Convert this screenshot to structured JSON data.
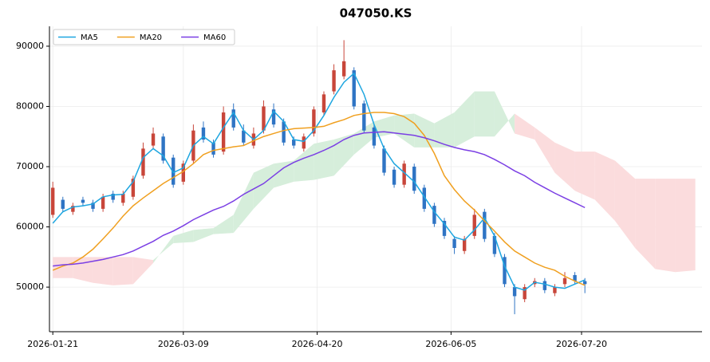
{
  "chart_data": {
    "type": "candlestick",
    "title": "047050.KS",
    "x": [
      0,
      3,
      6,
      9,
      12,
      15,
      18,
      21,
      24,
      27,
      30,
      33,
      36,
      39,
      42,
      45,
      48,
      51,
      54,
      57,
      60,
      63,
      66,
      69,
      72,
      75,
      78,
      81,
      84,
      87,
      90,
      93,
      96,
      99,
      102,
      105,
      108,
      111,
      114,
      117,
      120,
      123,
      126,
      129,
      132,
      135,
      138,
      141,
      144,
      147,
      150,
      153,
      156,
      159
    ],
    "open": [
      62000,
      64500,
      62500,
      64500,
      64000,
      63000,
      65500,
      64000,
      65000,
      68500,
      73500,
      75000,
      71500,
      67500,
      71000,
      76500,
      74000,
      72500,
      79500,
      76000,
      73500,
      76000,
      79500,
      77500,
      74500,
      73000,
      75500,
      79000,
      82500,
      85000,
      86000,
      80500,
      76500,
      73000,
      69500,
      67000,
      70000,
      66500,
      63500,
      61000,
      58000,
      56000,
      58500,
      62500,
      58500,
      55000,
      50000,
      48000,
      50500,
      51000,
      49000,
      50500,
      52000,
      51000
    ],
    "high": [
      67500,
      65000,
      64000,
      65000,
      64500,
      65500,
      66000,
      66000,
      68500,
      74000,
      76500,
      75500,
      72000,
      71000,
      77000,
      77500,
      74500,
      80000,
      80500,
      77000,
      76500,
      81000,
      80500,
      78000,
      75000,
      75500,
      80000,
      82500,
      87000,
      91000,
      86500,
      81000,
      77000,
      73500,
      70000,
      71000,
      70500,
      67000,
      64000,
      61500,
      58500,
      58500,
      63000,
      63000,
      59000,
      55500,
      50500,
      50500,
      51500,
      51500,
      50500,
      52500,
      52500,
      51500
    ],
    "low": [
      61500,
      62500,
      62000,
      63500,
      62500,
      62500,
      64000,
      63500,
      64500,
      68000,
      73000,
      70500,
      66500,
      67000,
      70500,
      74000,
      71500,
      72000,
      76000,
      73500,
      73000,
      75500,
      76500,
      73500,
      73000,
      72500,
      75000,
      78500,
      82000,
      84500,
      79500,
      75500,
      73000,
      68500,
      66500,
      66500,
      65500,
      62500,
      60000,
      58000,
      55500,
      55500,
      58000,
      57500,
      55000,
      50000,
      45500,
      47500,
      50000,
      49000,
      48500,
      50000,
      50500,
      49000
    ],
    "close": [
      66500,
      63000,
      63500,
      64000,
      63000,
      65000,
      64500,
      65500,
      68000,
      73000,
      75500,
      71000,
      67000,
      70500,
      76000,
      74500,
      72000,
      79000,
      76500,
      74000,
      75500,
      80000,
      77000,
      74000,
      73500,
      75000,
      79500,
      82000,
      86000,
      87500,
      80000,
      76000,
      73500,
      69000,
      67000,
      70500,
      66000,
      63000,
      60500,
      58500,
      56500,
      58000,
      62000,
      58000,
      55500,
      50500,
      48500,
      50000,
      51000,
      49500,
      50000,
      51500,
      51000,
      50500
    ],
    "up_color": "#c8463a",
    "down_color": "#2f74c4",
    "series": [
      {
        "name": "MA5",
        "color": "#1ea6e0",
        "values": [
          60600,
          62500,
          63300,
          63500,
          63800,
          65000,
          65300,
          65400,
          67500,
          71500,
          73000,
          71800,
          69000,
          69800,
          73500,
          75000,
          73800,
          76500,
          79000,
          76000,
          74500,
          76000,
          79200,
          77500,
          74500,
          74200,
          76000,
          78500,
          81500,
          84000,
          85500,
          82000,
          77000,
          73000,
          70500,
          69000,
          67500,
          65000,
          62500,
          60500,
          58300,
          57800,
          59500,
          61500,
          58500,
          53500,
          50000,
          49500,
          50800,
          50500,
          50000,
          49800,
          50500,
          51200
        ]
      },
      {
        "name": "MA20",
        "color": "#f0a020",
        "values": [
          52800,
          53500,
          54000,
          55000,
          56300,
          58000,
          59800,
          61800,
          63500,
          64800,
          66000,
          67200,
          68200,
          69200,
          70500,
          72000,
          72700,
          73000,
          73300,
          73500,
          74300,
          75000,
          75500,
          76000,
          76300,
          76400,
          76500,
          76700,
          77300,
          77800,
          78500,
          78800,
          79000,
          79000,
          78800,
          78300,
          77200,
          75200,
          72200,
          68500,
          66200,
          64300,
          62800,
          61000,
          59300,
          57500,
          56000,
          55000,
          54000,
          53300,
          52800,
          51800,
          51000,
          50300
        ]
      },
      {
        "name": "MA60",
        "color": "#7b3fe4",
        "values": [
          53500,
          53700,
          53800,
          54000,
          54300,
          54600,
          55000,
          55400,
          56000,
          56800,
          57600,
          58600,
          59300,
          60200,
          61200,
          62000,
          62800,
          63400,
          64300,
          65400,
          66300,
          67200,
          68500,
          69800,
          70700,
          71400,
          72000,
          72700,
          73500,
          74500,
          75200,
          75600,
          75700,
          75800,
          75600,
          75400,
          75200,
          74800,
          74300,
          73700,
          73200,
          72800,
          72500,
          72000,
          71200,
          70300,
          69300,
          68500,
          67400,
          66500,
          65600,
          64800,
          64000,
          63200
        ]
      }
    ],
    "cloud_x": [
      0,
      6,
      12,
      18,
      24,
      30,
      36,
      42,
      48,
      54,
      60,
      66,
      72,
      78,
      84,
      90,
      96,
      102,
      108,
      114,
      120,
      126,
      132,
      138,
      144,
      150,
      156,
      162,
      168,
      174,
      180,
      186,
      192
    ],
    "span_a": [
      51500,
      51500,
      50700,
      50300,
      50500,
      54000,
      58500,
      59500,
      59800,
      62000,
      69000,
      70500,
      71000,
      73800,
      74500,
      75500,
      77500,
      78500,
      78800,
      77200,
      79000,
      82500,
      82500,
      75500,
      74500,
      69000,
      66000,
      64500,
      61000,
      56500,
      53000,
      52500,
      52800
    ],
    "span_b": [
      55000,
      55000,
      55000,
      55000,
      55000,
      54500,
      57300,
      57500,
      58800,
      59000,
      63000,
      66500,
      67500,
      67800,
      68500,
      72000,
      74800,
      75500,
      73200,
      73200,
      73200,
      75000,
      75000,
      78800,
      76500,
      74000,
      72500,
      72500,
      71000,
      68000,
      68000,
      68000,
      68000
    ],
    "cloud_up_color": "#d6eedb",
    "cloud_down_color": "#fbdcdd",
    "xlim": [
      -1,
      194
    ],
    "xticks": [
      {
        "value": 0,
        "label": "2026-01-21"
      },
      {
        "value": 39,
        "label": "2026-03-09"
      },
      {
        "value": 79,
        "label": "2026-04-20"
      },
      {
        "value": 119,
        "label": "2026-06-05"
      },
      {
        "value": 158,
        "label": "2026-07-20"
      }
    ],
    "ylim": [
      42600,
      93300
    ],
    "yticks": [
      50000,
      60000,
      70000,
      80000,
      90000
    ],
    "grid": true,
    "legend": "upper left"
  }
}
